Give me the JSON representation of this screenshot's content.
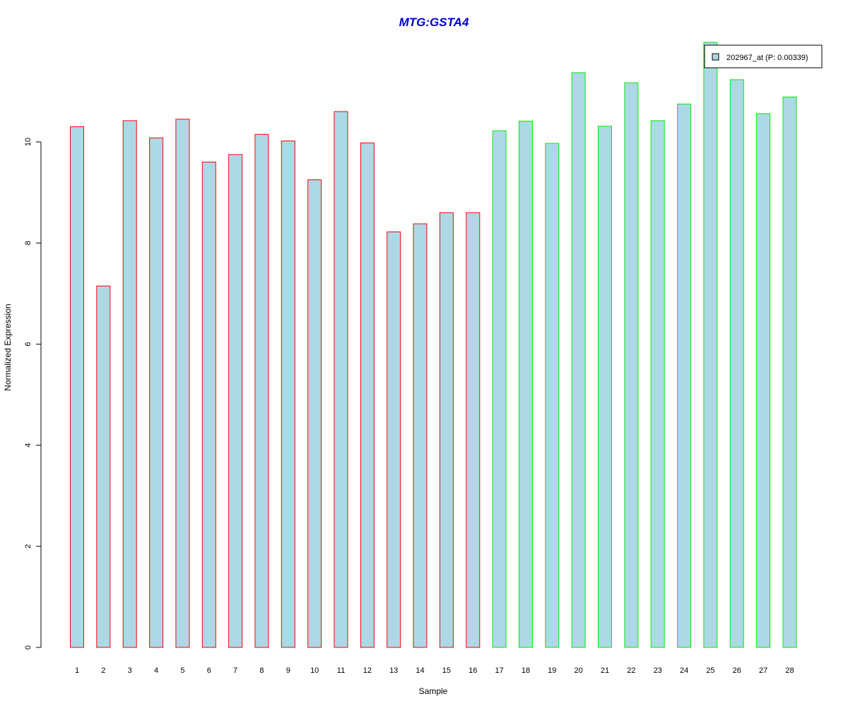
{
  "chart_data": {
    "type": "bar",
    "title": "MTG:GSTA4",
    "xlabel": "Sample",
    "ylabel": "Normalized Expression",
    "categories": [
      "1",
      "2",
      "3",
      "4",
      "5",
      "6",
      "7",
      "8",
      "9",
      "10",
      "11",
      "12",
      "13",
      "14",
      "15",
      "16",
      "17",
      "18",
      "19",
      "20",
      "21",
      "22",
      "23",
      "24",
      "25",
      "26",
      "27",
      "28"
    ],
    "series": [
      {
        "name": "202967_at (P: 0.00339)",
        "values": [
          10.3,
          7.15,
          10.42,
          10.08,
          10.45,
          9.6,
          9.75,
          10.15,
          10.02,
          9.25,
          10.6,
          9.98,
          8.22,
          8.38,
          8.6,
          8.6,
          10.22,
          10.41,
          9.97,
          11.37,
          10.31,
          11.17,
          10.42,
          10.75,
          11.97,
          11.23,
          10.56,
          10.89
        ],
        "border_colors": [
          "#ff0000",
          "#ff0000",
          "#ff0000",
          "#ff0000",
          "#ff0000",
          "#ff0000",
          "#ff0000",
          "#ff0000",
          "#ff0000",
          "#ff0000",
          "#ff0000",
          "#ff0000",
          "#ff0000",
          "#ff0000",
          "#ff0000",
          "#ff0000",
          "#00ee00",
          "#00ee00",
          "#00ee00",
          "#00ee00",
          "#00ee00",
          "#00ee00",
          "#00ee00",
          "#00ee00",
          "#00ee00",
          "#00ee00",
          "#00ee00",
          "#00ee00"
        ]
      }
    ],
    "yticks": [
      0,
      2,
      4,
      6,
      8,
      10
    ],
    "ylim": [
      0,
      12
    ],
    "grid": false,
    "legend_position": "top-right",
    "colors": {
      "title": "#0000cc",
      "bar_fill": "#add8e6",
      "group1_border": "#ff0000",
      "group2_border": "#00ee00",
      "axis": "#000000"
    }
  }
}
